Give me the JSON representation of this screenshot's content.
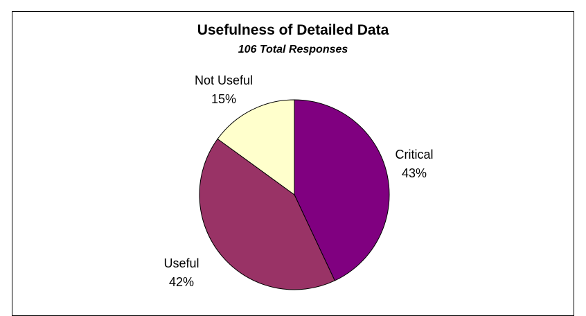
{
  "chart_data": {
    "type": "pie",
    "title": "Usefulness of Detailed Data",
    "subtitle": "106 Total Responses",
    "slices": [
      {
        "label": "Critical",
        "percent_label": "43%",
        "value": 43,
        "color": "#800080"
      },
      {
        "label": "Useful",
        "percent_label": "42%",
        "value": 42,
        "color": "#993366"
      },
      {
        "label": "Not Useful",
        "percent_label": "15%",
        "value": 15,
        "color": "#FFFFCC"
      }
    ],
    "start": "12 o'clock",
    "direction": "clockwise"
  }
}
